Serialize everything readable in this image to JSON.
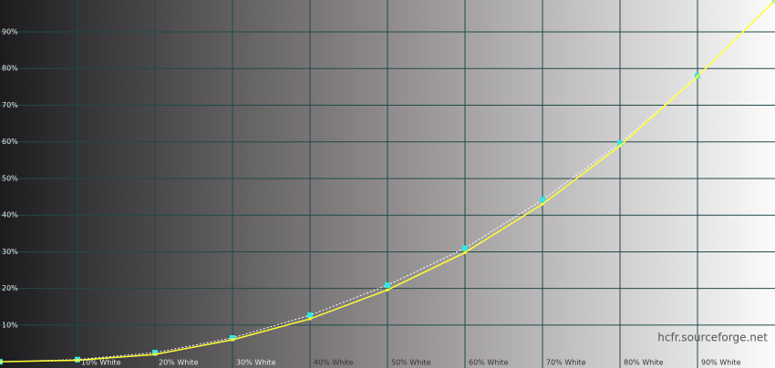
{
  "chart_data": {
    "type": "line",
    "x": [
      0,
      10,
      20,
      30,
      40,
      50,
      60,
      70,
      80,
      90,
      100
    ],
    "series": [
      {
        "color": "#ffffff",
        "marker_color": "#33e6e6",
        "dashed": true,
        "values": [
          0,
          0.6,
          2.5,
          6.5,
          12.7,
          20.9,
          31,
          44.2,
          59.6,
          78,
          98.6
        ]
      },
      {
        "color": "#ffff33",
        "marker_color": "#ffff33",
        "dashed": false,
        "values": [
          0,
          0.4,
          2,
          6,
          11.7,
          19.6,
          29.8,
          43,
          58.9,
          77.8,
          98.6
        ]
      }
    ],
    "xlim": [
      0,
      100
    ],
    "ylim": [
      -1.7,
      98.7
    ],
    "xticks": [
      {
        "value": 10,
        "label": "10% White"
      },
      {
        "value": 20,
        "label": "20% White"
      },
      {
        "value": 30,
        "label": "30% White"
      },
      {
        "value": 40,
        "label": "40% White"
      },
      {
        "value": 50,
        "label": "50% White"
      },
      {
        "value": 60,
        "label": "60% White"
      },
      {
        "value": 70,
        "label": "70% White"
      },
      {
        "value": 80,
        "label": "80% White"
      },
      {
        "value": 90,
        "label": "90% White"
      }
    ],
    "yticks": [
      {
        "value": 10,
        "label": "10%"
      },
      {
        "value": 20,
        "label": "20%"
      },
      {
        "value": 30,
        "label": "30%"
      },
      {
        "value": 40,
        "label": "40%"
      },
      {
        "value": 50,
        "label": "50%"
      },
      {
        "value": 60,
        "label": "60%"
      },
      {
        "value": 70,
        "label": "70%"
      },
      {
        "value": 80,
        "label": "80%"
      },
      {
        "value": 90,
        "label": "90%"
      }
    ],
    "grid": true,
    "grid_color": "#1f4a4a",
    "annotation": "hcfr.sourceforge.net"
  }
}
